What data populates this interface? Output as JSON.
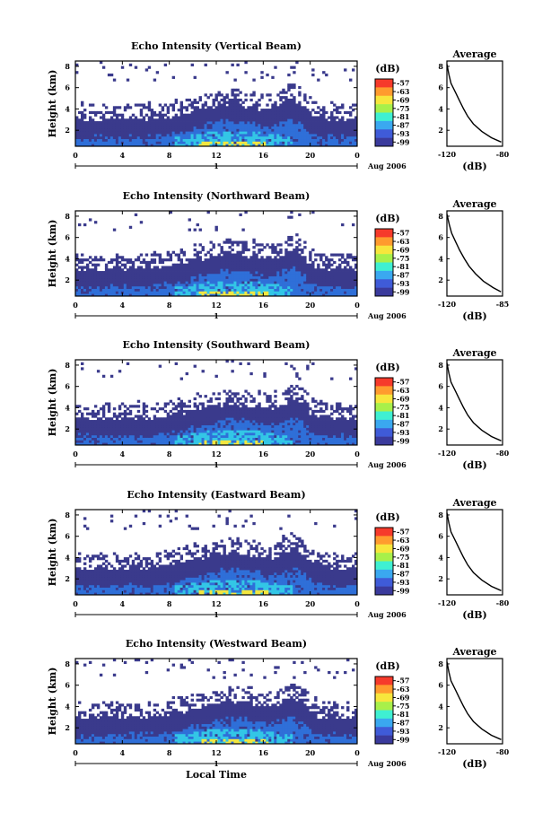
{
  "chart_data": [
    {
      "type": "heatmap",
      "title": "Echo Intensity (Vertical Beam)",
      "ylabel": "Height (km)",
      "x_ticks": [
        "0",
        "4",
        "8",
        "12",
        "16",
        "20",
        "0"
      ],
      "y_ticks": [
        "2",
        "4",
        "6",
        "8"
      ],
      "day_label": "1",
      "date_label": "Aug 2006",
      "xlim": [
        0,
        24
      ],
      "ylim": [
        0.5,
        8.5
      ],
      "colorbar": {
        "unit": "(dB)",
        "ticks": [
          "-57",
          "-63",
          "-69",
          "-75",
          "-81",
          "-87",
          "-93",
          "-99"
        ]
      },
      "average": {
        "title": "Average",
        "xlabel": "(dB)",
        "x_ticks": [
          "-120",
          "-80"
        ],
        "xlim": [
          -120,
          -80
        ],
        "y_ticks": [
          "2",
          "4",
          "6",
          "8"
        ],
        "profile": [
          [
            -120,
            8.2
          ],
          [
            -118.5,
            7.2
          ],
          [
            -117,
            6.4
          ],
          [
            -114,
            5.6
          ],
          [
            -111,
            4.8
          ],
          [
            -108,
            4.0
          ],
          [
            -105,
            3.3
          ],
          [
            -101,
            2.6
          ],
          [
            -95,
            1.9
          ],
          [
            -88,
            1.3
          ],
          [
            -81,
            0.9
          ]
        ]
      }
    },
    {
      "type": "heatmap",
      "title": "Echo Intensity (Northward Beam)",
      "ylabel": "Height (km)",
      "x_ticks": [
        "0",
        "4",
        "8",
        "12",
        "16",
        "20",
        "0"
      ],
      "y_ticks": [
        "2",
        "4",
        "6",
        "8"
      ],
      "day_label": "1",
      "date_label": "Aug 2006",
      "xlim": [
        0,
        24
      ],
      "ylim": [
        0.5,
        8.5
      ],
      "colorbar": {
        "unit": "(dB)",
        "ticks": [
          "-57",
          "-63",
          "-69",
          "-75",
          "-81",
          "-87",
          "-93",
          "-99"
        ]
      },
      "average": {
        "title": "Average",
        "xlabel": "(dB)",
        "x_ticks": [
          "-120",
          "-85"
        ],
        "xlim": [
          -120,
          -85
        ],
        "y_ticks": [
          "2",
          "4",
          "6",
          "8"
        ],
        "profile": [
          [
            -120,
            8.2
          ],
          [
            -118.5,
            7.2
          ],
          [
            -117,
            6.4
          ],
          [
            -114.5,
            5.6
          ],
          [
            -112,
            4.8
          ],
          [
            -109,
            4.0
          ],
          [
            -106,
            3.3
          ],
          [
            -102,
            2.6
          ],
          [
            -97,
            1.9
          ],
          [
            -91,
            1.3
          ],
          [
            -86,
            0.9
          ]
        ]
      }
    },
    {
      "type": "heatmap",
      "title": "Echo Intensity (Southward Beam)",
      "ylabel": "Height (km)",
      "x_ticks": [
        "0",
        "4",
        "8",
        "12",
        "16",
        "20",
        "0"
      ],
      "y_ticks": [
        "2",
        "4",
        "6",
        "8"
      ],
      "day_label": "1",
      "date_label": "Aug 2006",
      "xlim": [
        0,
        24
      ],
      "ylim": [
        0.5,
        8.5
      ],
      "colorbar": {
        "unit": "(dB)",
        "ticks": [
          "-57",
          "-63",
          "-69",
          "-75",
          "-81",
          "-87",
          "-93",
          "-99"
        ]
      },
      "average": {
        "title": "Average",
        "xlabel": "(dB)",
        "x_ticks": [
          "-120",
          "-80"
        ],
        "xlim": [
          -120,
          -80
        ],
        "y_ticks": [
          "2",
          "4",
          "6",
          "8"
        ],
        "profile": [
          [
            -120,
            8.2
          ],
          [
            -118.5,
            7.2
          ],
          [
            -117,
            6.4
          ],
          [
            -114,
            5.6
          ],
          [
            -111,
            4.8
          ],
          [
            -108,
            4.0
          ],
          [
            -105,
            3.3
          ],
          [
            -101,
            2.6
          ],
          [
            -95,
            1.9
          ],
          [
            -88,
            1.3
          ],
          [
            -81,
            0.9
          ]
        ]
      }
    },
    {
      "type": "heatmap",
      "title": "Echo Intensity (Eastward Beam)",
      "ylabel": "Height (km)",
      "x_ticks": [
        "0",
        "4",
        "8",
        "12",
        "16",
        "20",
        "0"
      ],
      "y_ticks": [
        "2",
        "4",
        "6",
        "8"
      ],
      "day_label": "1",
      "date_label": "Aug 2006",
      "xlim": [
        0,
        24
      ],
      "ylim": [
        0.5,
        8.5
      ],
      "colorbar": {
        "unit": "(dB)",
        "ticks": [
          "-57",
          "-63",
          "-69",
          "-75",
          "-81",
          "-87",
          "-93",
          "-99"
        ]
      },
      "average": {
        "title": "Average",
        "xlabel": "(dB)",
        "x_ticks": [
          "-120",
          "-80"
        ],
        "xlim": [
          -120,
          -80
        ],
        "y_ticks": [
          "2",
          "4",
          "6",
          "8"
        ],
        "profile": [
          [
            -120,
            8.2
          ],
          [
            -118.5,
            7.2
          ],
          [
            -117,
            6.4
          ],
          [
            -114,
            5.6
          ],
          [
            -111,
            4.8
          ],
          [
            -108,
            4.0
          ],
          [
            -105,
            3.3
          ],
          [
            -101,
            2.6
          ],
          [
            -95,
            1.9
          ],
          [
            -88,
            1.3
          ],
          [
            -81,
            0.9
          ]
        ]
      }
    },
    {
      "type": "heatmap",
      "title": "Echo Intensity (Westward Beam)",
      "ylabel": "Height (km)",
      "x_ticks": [
        "0",
        "4",
        "8",
        "12",
        "16",
        "20",
        "0"
      ],
      "y_ticks": [
        "2",
        "4",
        "6",
        "8"
      ],
      "day_label": "1",
      "date_label": "Aug 2006",
      "xlabel": "Local Time",
      "xlim": [
        0,
        24
      ],
      "ylim": [
        0.5,
        8.5
      ],
      "colorbar": {
        "unit": "(dB)",
        "ticks": [
          "-57",
          "-63",
          "-69",
          "-75",
          "-81",
          "-87",
          "-93",
          "-99"
        ]
      },
      "average": {
        "title": "Average",
        "xlabel": "(dB)",
        "x_ticks": [
          "-120",
          "-80"
        ],
        "xlim": [
          -120,
          -80
        ],
        "y_ticks": [
          "2",
          "4",
          "6",
          "8"
        ],
        "profile": [
          [
            -120,
            8.2
          ],
          [
            -118.5,
            7.2
          ],
          [
            -117,
            6.4
          ],
          [
            -114,
            5.6
          ],
          [
            -111,
            4.8
          ],
          [
            -108,
            4.0
          ],
          [
            -105,
            3.3
          ],
          [
            -101,
            2.6
          ],
          [
            -95,
            1.9
          ],
          [
            -88,
            1.3
          ],
          [
            -81,
            0.9
          ]
        ]
      }
    }
  ],
  "colors": {
    "colorbar": [
      "#f63a2b",
      "#ff9b2e",
      "#f7e63c",
      "#a8f04a",
      "#3ff0d2",
      "#3aa8f0",
      "#3f5bd8",
      "#3a3a9c"
    ],
    "noise": "#3a3a8c",
    "echo_mid": "#2f6fd8",
    "echo_low": "#33c6e6",
    "echo_strong": "#f2e640"
  }
}
